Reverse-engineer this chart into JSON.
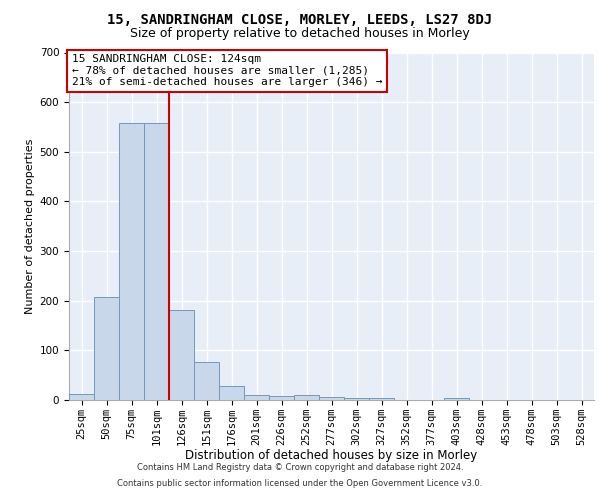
{
  "title1": "15, SANDRINGHAM CLOSE, MORLEY, LEEDS, LS27 8DJ",
  "title2": "Size of property relative to detached houses in Morley",
  "xlabel": "Distribution of detached houses by size in Morley",
  "ylabel": "Number of detached properties",
  "footer1": "Contains HM Land Registry data © Crown copyright and database right 2024.",
  "footer2": "Contains public sector information licensed under the Open Government Licence v3.0.",
  "annotation_line1": "15 SANDRINGHAM CLOSE: 124sqm",
  "annotation_line2": "← 78% of detached houses are smaller (1,285)",
  "annotation_line3": "21% of semi-detached houses are larger (346) →",
  "bar_color": "#c8d8ea",
  "bar_edge_color": "#7099bb",
  "vline_color": "#cc0000",
  "vline_x_idx": 4,
  "categories": [
    "25sqm",
    "50sqm",
    "75sqm",
    "101sqm",
    "126sqm",
    "151sqm",
    "176sqm",
    "201sqm",
    "226sqm",
    "252sqm",
    "277sqm",
    "302sqm",
    "327sqm",
    "352sqm",
    "377sqm",
    "403sqm",
    "428sqm",
    "453sqm",
    "478sqm",
    "503sqm",
    "528sqm"
  ],
  "values": [
    12,
    207,
    557,
    558,
    181,
    77,
    28,
    11,
    8,
    11,
    7,
    5,
    4,
    0,
    0,
    5,
    0,
    0,
    0,
    0,
    0
  ],
  "ylim": [
    0,
    700
  ],
  "yticks": [
    0,
    100,
    200,
    300,
    400,
    500,
    600,
    700
  ],
  "bg_color": "#e8eef8",
  "grid_color": "#ffffff",
  "title1_fontsize": 10,
  "title2_fontsize": 9,
  "tick_fontsize": 7.5,
  "ylabel_fontsize": 8,
  "xlabel_fontsize": 8.5,
  "annot_fontsize": 8,
  "footer_fontsize": 6
}
